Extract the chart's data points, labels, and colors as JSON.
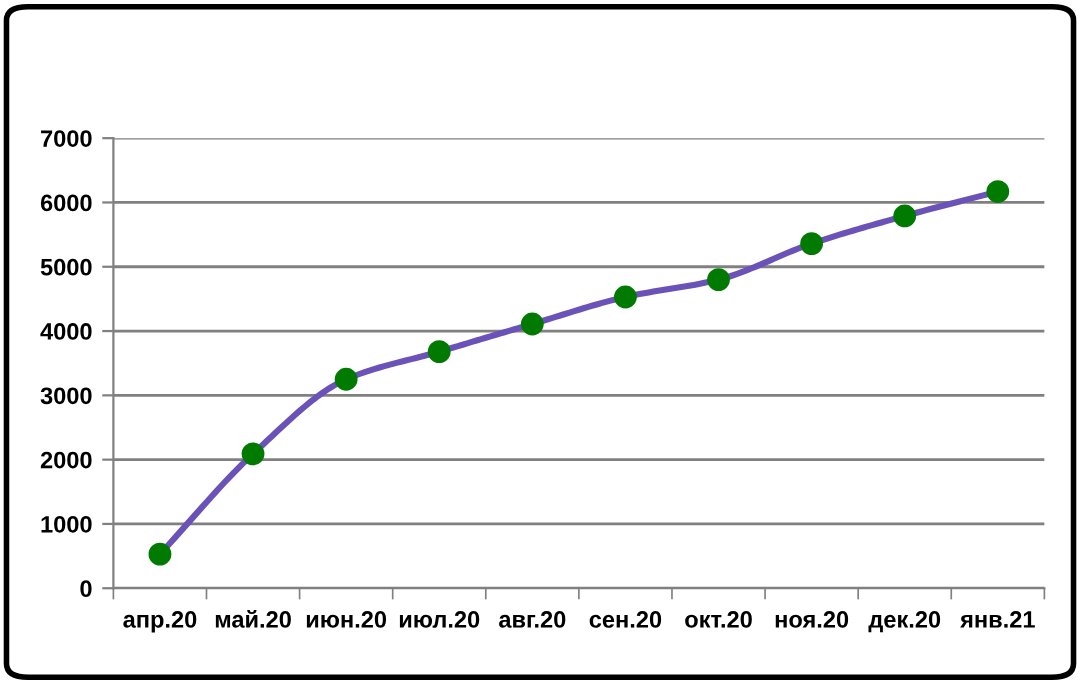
{
  "chart_data": {
    "type": "line",
    "categories": [
      "апр.20",
      "май.20",
      "июн.20",
      "июл.20",
      "авг.20",
      "сен.20",
      "окт.20",
      "ноя.20",
      "дек.20",
      "янв.21"
    ],
    "series": [
      {
        "color": "#6a52b8",
        "colors": [
          "#007a00",
          "#007a00",
          "#007a00",
          "#007a00",
          "#007a00",
          "#007a00",
          "#007a00",
          "#007a00",
          "#007a00",
          "#007a00"
        ],
        "values": [
          530,
          2090,
          3250,
          3680,
          4110,
          4530,
          4800,
          5360,
          5790,
          6170
        ]
      }
    ],
    "marker": "circle",
    "ylim": [
      0,
      7000
    ],
    "yticks": [
      0,
      1000,
      2000,
      3000,
      4000,
      5000,
      6000,
      7000
    ],
    "grid": "y",
    "legend": false
  }
}
